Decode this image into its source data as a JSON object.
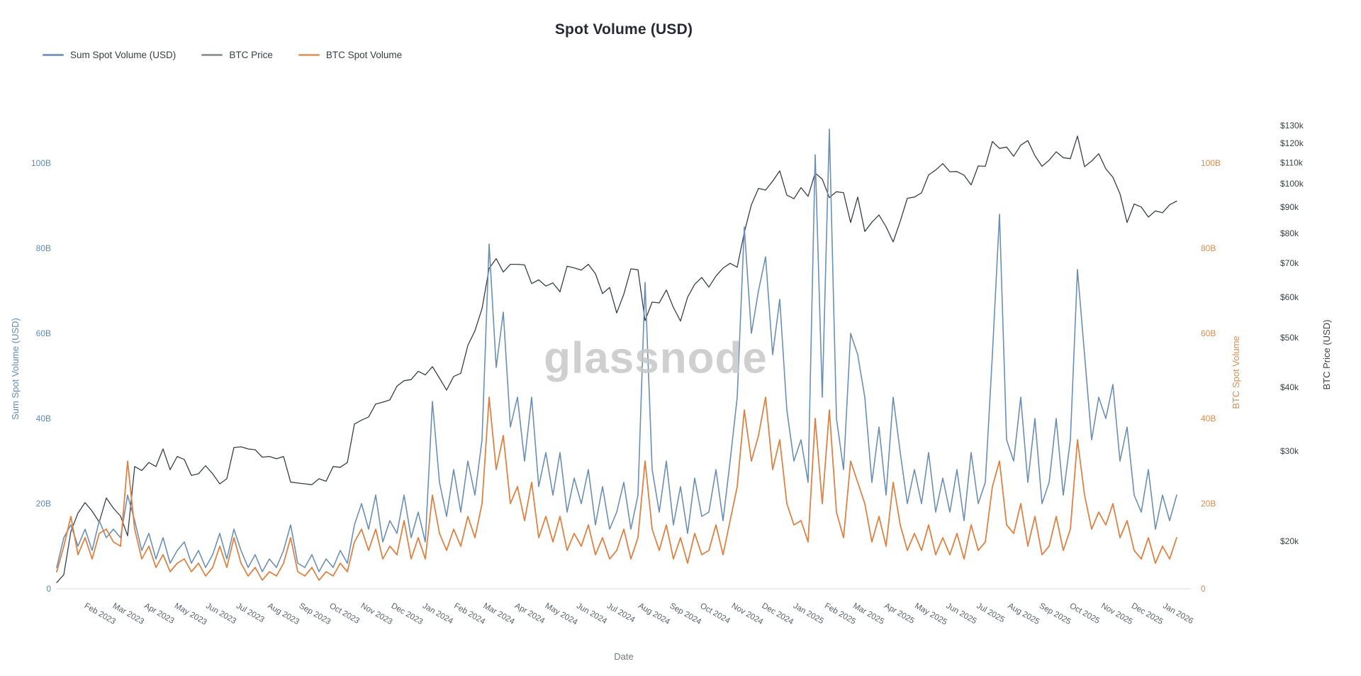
{
  "header": {
    "title": "Spot Volume (USD)"
  },
  "watermark": "glassnode",
  "legend": [
    {
      "label": "Sum Spot Volume (USD)",
      "color": "#7d9cc0"
    },
    {
      "label": "BTC Price",
      "color": "#969a9f"
    },
    {
      "label": "BTC Spot Volume",
      "color": "#e0a070"
    }
  ],
  "chart_data": {
    "type": "line",
    "title": "Spot Volume (USD)",
    "xlabel": "Date",
    "start_date": "2023-01-01",
    "step_days": 7,
    "grid": false,
    "legend_position": "top-left",
    "x_ticks": [
      "Feb 2023",
      "Mar 2023",
      "Apr 2023",
      "May 2023",
      "Jun 2023",
      "Jul 2023",
      "Aug 2023",
      "Sep 2023",
      "Oct 2023",
      "Nov 2023",
      "Dec 2023",
      "Jan 2024",
      "Feb 2024",
      "Mar 2024",
      "Apr 2024",
      "May 2024",
      "Jun 2024",
      "Jul 2024",
      "Aug 2024",
      "Sep 2024",
      "Oct 2024",
      "Nov 2024",
      "Dec 2024",
      "Jan 2025",
      "Feb 2025",
      "Mar 2025",
      "Apr 2025",
      "May 2025",
      "Jun 2025",
      "Jul 2025",
      "Aug 2025",
      "Sep 2025",
      "Oct 2025",
      "Nov 2025",
      "Dec 2025",
      "Jan 2026"
    ],
    "left_axis": {
      "title": "Sum Spot Volume (USD)",
      "color": "#5e8cba",
      "ticks": [
        "0",
        "20B",
        "40B",
        "60B",
        "80B",
        "100B"
      ],
      "tick_values_billion": [
        0,
        20,
        40,
        60,
        80,
        100
      ],
      "max_billion": 110
    },
    "right_axis_volume": {
      "title": "BTC Spot Volume",
      "color": "#dc8c48",
      "ticks": [
        "0",
        "20B",
        "40B",
        "60B",
        "80B",
        "100B"
      ],
      "tick_values_billion": [
        0,
        20,
        40,
        60,
        80,
        100
      ],
      "max_billion": 110
    },
    "right_axis_price": {
      "title": "BTC Price (USD)",
      "color": "#3d4046",
      "scale": "log",
      "ticks": [
        "$20k",
        "$30k",
        "$40k",
        "$50k",
        "$60k",
        "$70k",
        "$80k",
        "$90k",
        "$100k",
        "$110k",
        "$120k",
        "$130k"
      ],
      "tick_values_usd": [
        20000,
        30000,
        40000,
        50000,
        60000,
        70000,
        80000,
        90000,
        100000,
        110000,
        120000,
        130000
      ]
    },
    "series": [
      {
        "name": "Sum Spot Volume (USD)",
        "axis": "volume",
        "unit": "billion USD",
        "color": "#6b8fb4",
        "width": 1.6,
        "values": [
          5,
          12,
          15,
          10,
          14,
          9,
          16,
          12,
          14,
          12,
          22,
          16,
          9,
          13,
          7,
          12,
          6,
          9,
          11,
          6,
          9,
          5,
          8,
          13,
          7,
          14,
          9,
          5,
          8,
          4,
          7,
          5,
          9,
          15,
          6,
          5,
          8,
          4,
          7,
          5,
          9,
          6,
          15,
          20,
          14,
          22,
          11,
          16,
          13,
          22,
          12,
          18,
          11,
          44,
          25,
          17,
          28,
          18,
          30,
          22,
          35,
          81,
          52,
          65,
          38,
          45,
          30,
          45,
          24,
          32,
          22,
          32,
          18,
          26,
          20,
          28,
          15,
          24,
          14,
          18,
          25,
          14,
          22,
          72,
          28,
          18,
          30,
          15,
          24,
          13,
          26,
          17,
          18,
          28,
          16,
          30,
          45,
          85,
          60,
          70,
          78,
          55,
          68,
          42,
          30,
          35,
          25,
          102,
          45,
          108,
          40,
          28,
          60,
          55,
          45,
          25,
          38,
          22,
          45,
          32,
          20,
          28,
          20,
          32,
          18,
          26,
          18,
          28,
          16,
          32,
          20,
          25,
          55,
          88,
          35,
          30,
          45,
          25,
          40,
          20,
          25,
          40,
          22,
          35,
          75,
          55,
          35,
          45,
          40,
          48,
          30,
          38,
          22,
          18,
          28,
          14,
          22,
          16,
          22
        ]
      },
      {
        "name": "BTC Price",
        "axis": "price",
        "unit": "thousand USD",
        "color": "#3a3e46",
        "width": 1.3,
        "values": [
          16.6,
          17.2,
          20.9,
          22.7,
          23.8,
          22.9,
          21.8,
          24.3,
          23.2,
          22.4,
          20.5,
          28.0,
          27.5,
          28.5,
          28.0,
          30.3,
          27.6,
          29.3,
          28.9,
          26.9,
          27.1,
          28.1,
          27.1,
          25.9,
          26.5,
          30.5,
          30.6,
          30.3,
          30.2,
          29.2,
          29.3,
          29.0,
          29.3,
          26.1,
          26.0,
          25.9,
          25.8,
          26.5,
          26.2,
          28.0,
          27.9,
          28.5,
          33.9,
          34.5,
          35.0,
          37.1,
          37.4,
          37.8,
          40.2,
          41.2,
          41.4,
          43.0,
          42.3,
          43.9,
          41.7,
          39.5,
          42.0,
          42.6,
          48.3,
          51.6,
          57.0,
          68.3,
          71.4,
          67.2,
          69.6,
          69.6,
          69.4,
          63.8,
          64.9,
          63.1,
          64.0,
          61.5,
          69.0,
          68.5,
          67.8,
          69.6,
          66.7,
          61.0,
          62.7,
          55.9,
          60.8,
          68.2,
          67.9,
          54.0,
          58.7,
          58.5,
          62.0,
          57.3,
          53.9,
          60.0,
          63.6,
          65.6,
          62.8,
          66.0,
          68.4,
          69.9,
          68.7,
          80.4,
          91.0,
          98.0,
          97.2,
          101.2,
          106.0,
          95.1,
          93.5,
          98.3,
          94.5,
          105.0,
          102.1,
          94.0,
          96.5,
          96.1,
          84.0,
          94.2,
          80.7,
          84.1,
          86.9,
          82.4,
          77.0,
          84.5,
          93.7,
          94.2,
          96.0,
          104.1,
          106.4,
          109.5,
          105.6,
          105.7,
          104.0,
          99.5,
          108.4,
          108.2,
          121.0,
          117.3,
          118.0,
          113.2,
          119.0,
          121.5,
          113.5,
          108.2,
          111.2,
          115.5,
          112.5,
          112.0,
          124.0,
          108.0,
          110.8,
          114.5,
          107.0,
          103.0,
          95.6,
          84.0,
          91.3,
          90.1,
          86.1,
          88.5,
          87.8,
          91.0,
          92.5
        ]
      },
      {
        "name": "BTC Spot Volume",
        "axis": "volume",
        "unit": "billion USD",
        "color": "#de8244",
        "width": 1.8,
        "values": [
          4,
          10,
          17,
          8,
          12,
          7,
          13,
          14,
          11,
          10,
          30,
          14,
          7,
          10,
          5,
          8,
          4,
          6,
          7,
          4,
          6,
          3,
          5,
          10,
          5,
          12,
          6,
          3,
          5,
          2,
          4,
          3,
          6,
          12,
          4,
          3,
          5,
          2,
          4,
          3,
          6,
          4,
          11,
          14,
          9,
          14,
          7,
          10,
          8,
          16,
          7,
          12,
          7,
          22,
          13,
          9,
          14,
          10,
          17,
          12,
          20,
          45,
          28,
          36,
          20,
          24,
          16,
          25,
          12,
          17,
          11,
          17,
          9,
          13,
          10,
          15,
          8,
          12,
          7,
          9,
          14,
          7,
          12,
          30,
          14,
          9,
          15,
          7,
          12,
          6,
          13,
          8,
          9,
          15,
          8,
          16,
          24,
          42,
          30,
          36,
          45,
          28,
          35,
          20,
          15,
          16,
          11,
          40,
          20,
          42,
          18,
          12,
          30,
          25,
          20,
          11,
          17,
          10,
          25,
          15,
          9,
          13,
          9,
          15,
          8,
          12,
          8,
          13,
          7,
          15,
          9,
          11,
          24,
          30,
          15,
          13,
          20,
          10,
          17,
          8,
          10,
          17,
          9,
          14,
          35,
          22,
          14,
          18,
          15,
          20,
          12,
          16,
          9,
          7,
          12,
          6,
          10,
          7,
          12
        ]
      }
    ]
  }
}
